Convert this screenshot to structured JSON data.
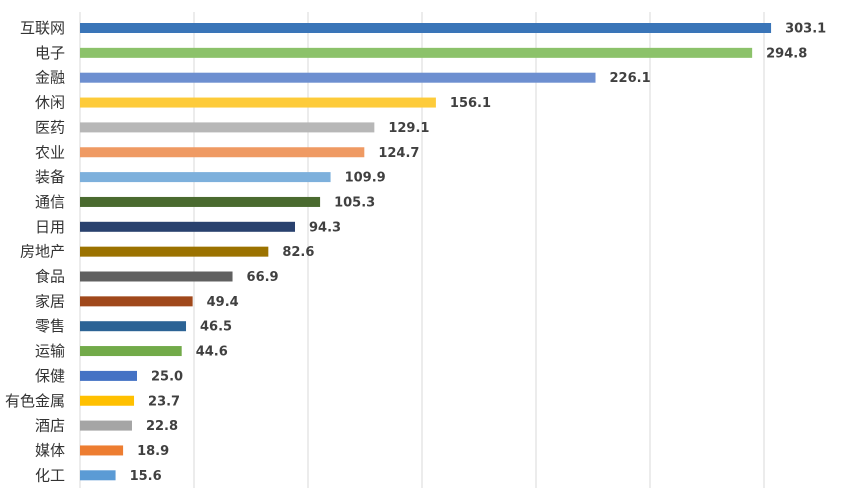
{
  "chart_data": {
    "type": "bar",
    "orientation": "horizontal",
    "title": "",
    "xlabel": "",
    "ylabel": "",
    "xlim": [
      0,
      350
    ],
    "grid": true,
    "legend": "none",
    "categories": [
      "互联网",
      "电子",
      "金融",
      "休闲",
      "医药",
      "农业",
      "装备",
      "通信",
      "日用",
      "房地产",
      "食品",
      "家居",
      "零售",
      "运输",
      "保健",
      "有色金属",
      "酒店",
      "媒体",
      "化工"
    ],
    "values": [
      303.1,
      294.8,
      226.1,
      156.1,
      129.1,
      124.7,
      109.9,
      105.3,
      94.3,
      82.6,
      66.9,
      49.4,
      46.5,
      44.6,
      25.0,
      23.7,
      22.8,
      18.9,
      15.6
    ],
    "value_labels": [
      "303.1",
      "294.8",
      "226.1",
      "156.1",
      "129.1",
      "124.7",
      "109.9",
      "105.3",
      "94.3",
      "82.6",
      "66.9",
      "49.4",
      "46.5",
      "44.6",
      "25.0",
      "23.7",
      "22.8",
      "18.9",
      "15.6"
    ],
    "colors": [
      "#3a75b8",
      "#8cc26a",
      "#6d8fd0",
      "#fdcb3a",
      "#b7b7b7",
      "#ef9a63",
      "#7db0dc",
      "#4a6a2f",
      "#29416e",
      "#9b7200",
      "#606060",
      "#a0481b",
      "#2c6395",
      "#72aa49",
      "#4472c4",
      "#ffc000",
      "#a5a5a5",
      "#ed7d31",
      "#5b9bd5"
    ]
  }
}
